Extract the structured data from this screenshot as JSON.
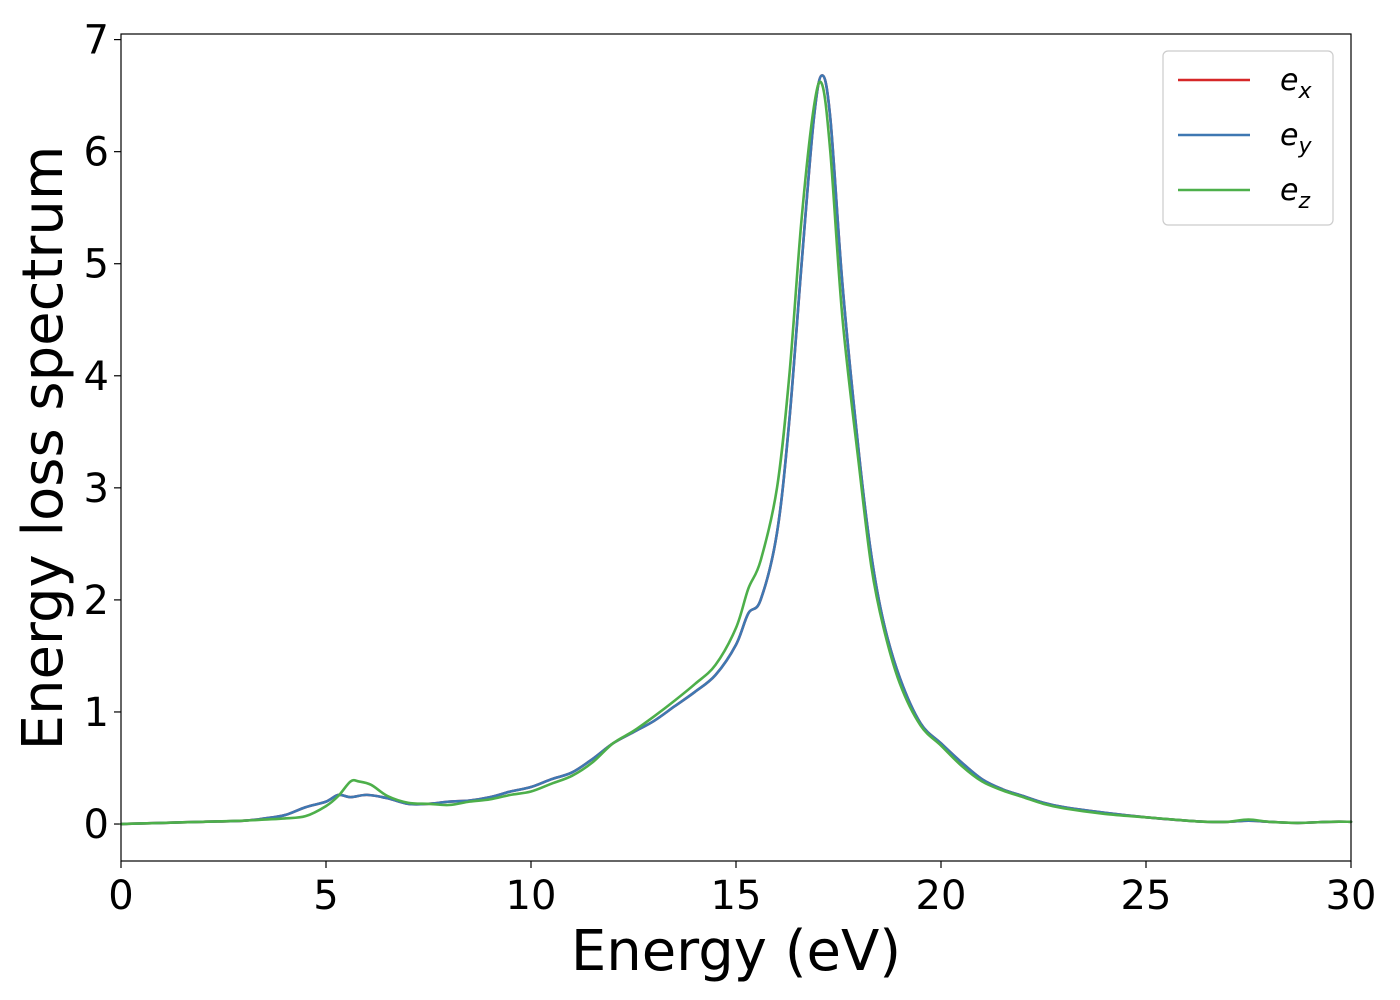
{
  "chart_data": {
    "type": "line",
    "title": "",
    "xlabel": "Energy (eV)",
    "ylabel": "Energy loss spectrum",
    "xlim": [
      0,
      30
    ],
    "ylim": [
      -0.33,
      7.05
    ],
    "xticks": [
      0,
      5,
      10,
      15,
      20,
      25,
      30
    ],
    "yticks": [
      0,
      1,
      2,
      3,
      4,
      5,
      6,
      7
    ],
    "grid": false,
    "legend_position": "top-right",
    "series": [
      {
        "name": "e_x",
        "label_base": "e",
        "label_sub": "x",
        "color": "#d62728",
        "x": [
          0,
          1,
          2,
          3,
          3.5,
          4,
          4.5,
          5,
          5.3,
          5.6,
          6,
          6.5,
          7,
          7.5,
          8,
          8.5,
          9,
          9.5,
          10,
          10.5,
          11,
          11.5,
          12,
          12.5,
          13,
          13.5,
          14,
          14.5,
          15,
          15.3,
          15.6,
          16,
          16.3,
          16.6,
          16.9,
          17.1,
          17.3,
          17.6,
          18,
          18.3,
          18.6,
          19,
          19.5,
          20,
          20.5,
          21,
          21.5,
          22,
          22.5,
          23,
          24,
          25,
          26,
          26.5,
          27,
          27.5,
          28,
          28.7,
          29.5,
          30
        ],
        "y": [
          0.0,
          0.01,
          0.02,
          0.03,
          0.05,
          0.08,
          0.15,
          0.2,
          0.26,
          0.24,
          0.26,
          0.23,
          0.18,
          0.18,
          0.2,
          0.21,
          0.24,
          0.29,
          0.33,
          0.4,
          0.46,
          0.58,
          0.72,
          0.82,
          0.92,
          1.05,
          1.18,
          1.33,
          1.6,
          1.88,
          2.0,
          2.6,
          3.6,
          5.0,
          6.3,
          6.68,
          6.3,
          4.8,
          3.3,
          2.4,
          1.8,
          1.3,
          0.9,
          0.72,
          0.55,
          0.4,
          0.31,
          0.25,
          0.19,
          0.15,
          0.1,
          0.06,
          0.03,
          0.02,
          0.02,
          0.03,
          0.02,
          0.01,
          0.02,
          0.02
        ]
      },
      {
        "name": "e_y",
        "label_base": "e",
        "label_sub": "y",
        "color": "#3e78b2",
        "x": [
          0,
          1,
          2,
          3,
          3.5,
          4,
          4.5,
          5,
          5.3,
          5.6,
          6,
          6.5,
          7,
          7.5,
          8,
          8.5,
          9,
          9.5,
          10,
          10.5,
          11,
          11.5,
          12,
          12.5,
          13,
          13.5,
          14,
          14.5,
          15,
          15.3,
          15.6,
          16,
          16.3,
          16.6,
          16.9,
          17.1,
          17.3,
          17.6,
          18,
          18.3,
          18.6,
          19,
          19.5,
          20,
          20.5,
          21,
          21.5,
          22,
          22.5,
          23,
          24,
          25,
          26,
          26.5,
          27,
          27.5,
          28,
          28.7,
          29.5,
          30
        ],
        "y": [
          0.0,
          0.01,
          0.02,
          0.03,
          0.05,
          0.08,
          0.15,
          0.2,
          0.26,
          0.24,
          0.26,
          0.23,
          0.18,
          0.18,
          0.2,
          0.21,
          0.24,
          0.29,
          0.33,
          0.4,
          0.46,
          0.58,
          0.72,
          0.82,
          0.92,
          1.05,
          1.18,
          1.33,
          1.6,
          1.88,
          2.0,
          2.6,
          3.6,
          5.0,
          6.3,
          6.68,
          6.3,
          4.8,
          3.3,
          2.4,
          1.8,
          1.3,
          0.9,
          0.72,
          0.55,
          0.4,
          0.31,
          0.25,
          0.19,
          0.15,
          0.1,
          0.06,
          0.03,
          0.02,
          0.02,
          0.03,
          0.02,
          0.01,
          0.02,
          0.02
        ]
      },
      {
        "name": "e_z",
        "label_base": "e",
        "label_sub": "z",
        "color": "#4daf4a",
        "x": [
          0,
          1,
          2,
          3,
          3.5,
          4,
          4.5,
          5,
          5.3,
          5.6,
          5.8,
          6.1,
          6.5,
          7,
          7.5,
          8,
          8.5,
          9,
          9.5,
          10,
          10.5,
          11,
          11.5,
          12,
          12.5,
          13,
          13.5,
          14,
          14.5,
          15,
          15.3,
          15.6,
          16,
          16.3,
          16.6,
          16.9,
          17.1,
          17.3,
          17.6,
          18,
          18.3,
          18.6,
          19,
          19.5,
          20,
          20.5,
          21,
          21.5,
          22,
          22.5,
          23,
          24,
          25,
          26,
          26.5,
          27,
          27.5,
          28,
          28.7,
          29.5,
          30
        ],
        "y": [
          0.0,
          0.01,
          0.02,
          0.03,
          0.04,
          0.05,
          0.07,
          0.16,
          0.25,
          0.38,
          0.38,
          0.35,
          0.25,
          0.19,
          0.18,
          0.17,
          0.2,
          0.22,
          0.26,
          0.29,
          0.36,
          0.43,
          0.55,
          0.72,
          0.83,
          0.96,
          1.1,
          1.25,
          1.42,
          1.75,
          2.1,
          2.35,
          3.0,
          4.0,
          5.4,
          6.4,
          6.6,
          6.0,
          4.5,
          3.2,
          2.3,
          1.75,
          1.25,
          0.88,
          0.7,
          0.52,
          0.38,
          0.3,
          0.24,
          0.18,
          0.14,
          0.09,
          0.06,
          0.03,
          0.02,
          0.02,
          0.04,
          0.02,
          0.01,
          0.02,
          0.02
        ]
      }
    ]
  }
}
